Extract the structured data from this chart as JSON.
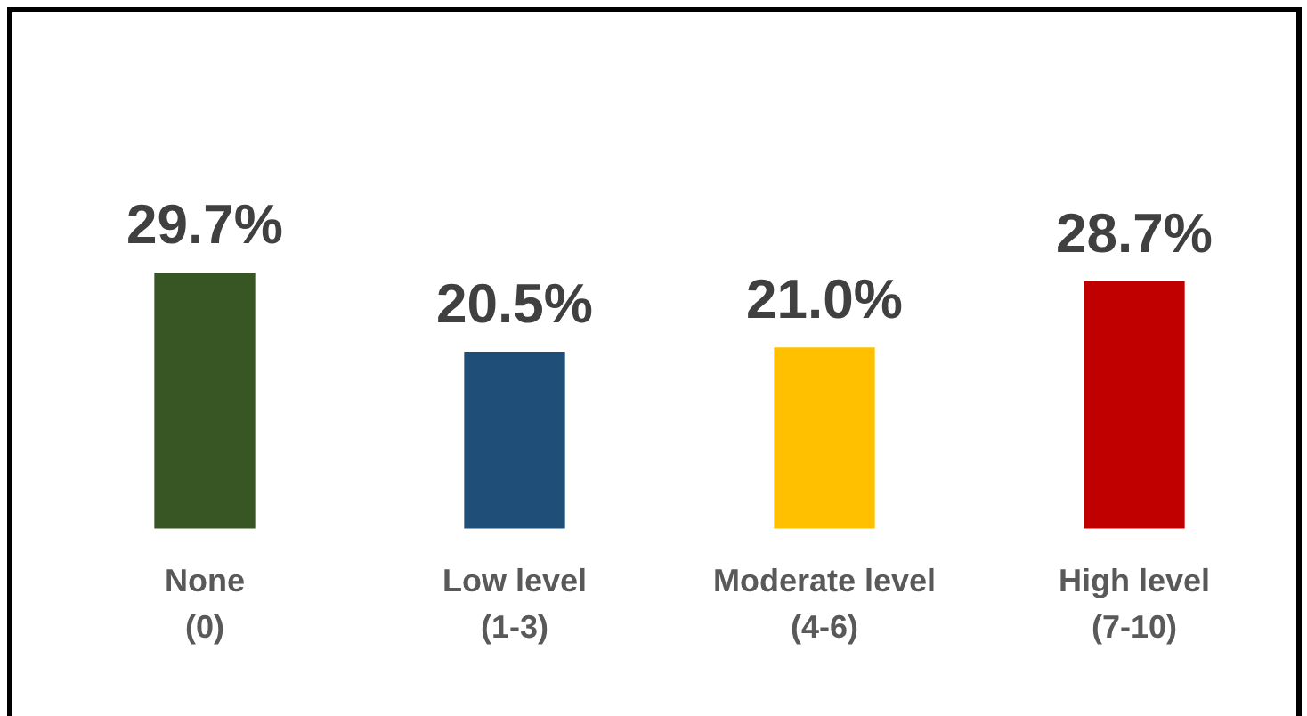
{
  "chart_data": {
    "type": "bar",
    "categories": [
      "None (0)",
      "Low level (1-3)",
      "Moderate level (4-6)",
      "High level (7-10)"
    ],
    "values": [
      29.7,
      20.5,
      21.0,
      28.7
    ],
    "colors": [
      "#375623",
      "#1f4e79",
      "#ffc000",
      "#c00000"
    ],
    "value_labels": [
      "29.7%",
      "20.5%",
      "21.0%",
      "28.7%"
    ],
    "tick_labels": "x"
  }
}
